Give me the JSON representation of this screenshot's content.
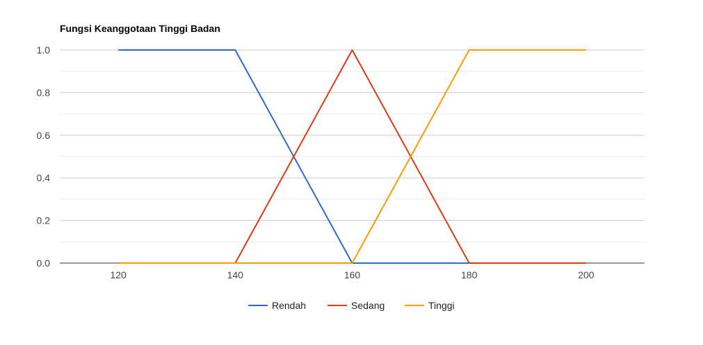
{
  "chart_data": {
    "type": "line",
    "title": "Fungsi Keanggotaan Tinggi Badan",
    "xlabel": "",
    "ylabel": "",
    "xlim": [
      110,
      210
    ],
    "ylim": [
      0,
      1
    ],
    "x_ticks": [
      120,
      140,
      160,
      180,
      200
    ],
    "y_ticks": [
      0.0,
      0.2,
      0.4,
      0.6,
      0.8,
      1.0
    ],
    "y_tick_labels": [
      "0.0",
      "0.2",
      "0.4",
      "0.6",
      "0.8",
      "1.0"
    ],
    "grid": true,
    "legend_position": "bottom",
    "series": [
      {
        "name": "Rendah",
        "color": "#3366cc",
        "x": [
          120,
          140,
          160,
          180,
          200
        ],
        "y": [
          1,
          1,
          0,
          0,
          0
        ]
      },
      {
        "name": "Sedang",
        "color": "#dc3912",
        "x": [
          120,
          140,
          160,
          180,
          200
        ],
        "y": [
          0,
          0,
          1,
          0,
          0
        ]
      },
      {
        "name": "Tinggi",
        "color": "#ff9900",
        "x": [
          120,
          140,
          160,
          180,
          200
        ],
        "y": [
          0,
          0,
          0,
          1,
          1
        ]
      }
    ]
  }
}
